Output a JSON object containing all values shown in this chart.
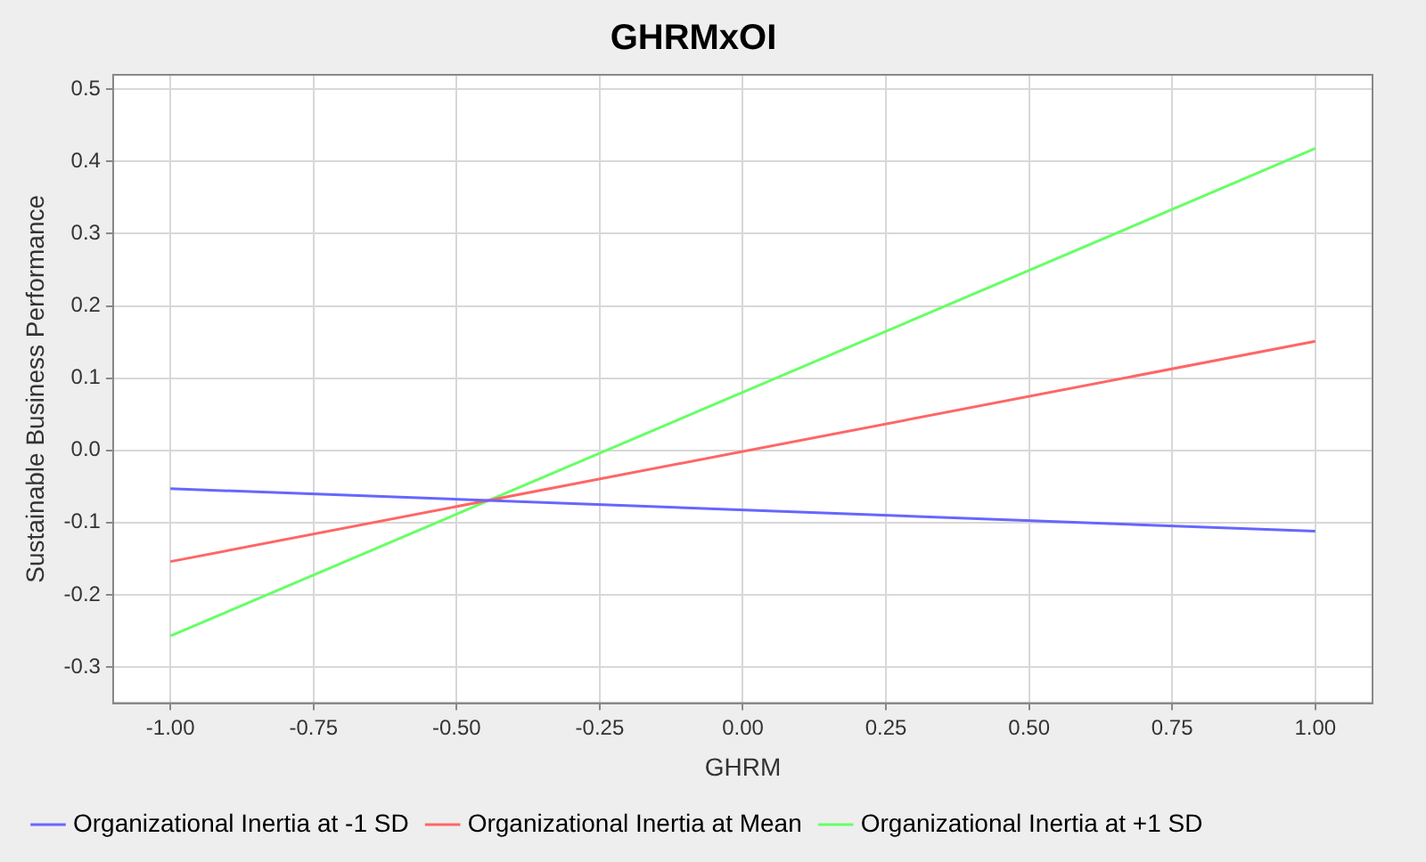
{
  "chart_data": {
    "type": "line",
    "title": "GHRMxOI",
    "xlabel": "GHRM",
    "ylabel": "Sustainable Business Performance",
    "x": [
      -1,
      1
    ],
    "series": [
      {
        "name": "Organizational Inertia at -1 SD",
        "color": "#6666ff",
        "values": [
          -0.053,
          -0.112
        ]
      },
      {
        "name": "Organizational Inertia at Mean",
        "color": "#ff6666",
        "values": [
          -0.154,
          0.151
        ]
      },
      {
        "name": "Organizational Inertia at +1 SD",
        "color": "#66ff66",
        "values": [
          -0.257,
          0.418
        ]
      }
    ],
    "xlim": [
      -1.1,
      1.1
    ],
    "xticks": [
      {
        "value": -1,
        "label": "-1.00"
      },
      {
        "value": -0.75,
        "label": "-0.75"
      },
      {
        "value": -0.5,
        "label": "-0.50"
      },
      {
        "value": -0.25,
        "label": "-0.25"
      },
      {
        "value": 0,
        "label": "0.00"
      },
      {
        "value": 0.25,
        "label": "0.25"
      },
      {
        "value": 0.5,
        "label": "0.50"
      },
      {
        "value": 0.75,
        "label": "0.75"
      },
      {
        "value": 1,
        "label": "1.00"
      }
    ],
    "ylim": [
      -0.35,
      0.52
    ],
    "yticks": [
      {
        "value": -0.3,
        "label": "-0.3"
      },
      {
        "value": -0.2,
        "label": "-0.2"
      },
      {
        "value": -0.1,
        "label": "-0.1"
      },
      {
        "value": 0,
        "label": "0.0"
      },
      {
        "value": 0.1,
        "label": "0.1"
      },
      {
        "value": 0.2,
        "label": "0.2"
      },
      {
        "value": 0.3,
        "label": "0.3"
      },
      {
        "value": 0.4,
        "label": "0.4"
      },
      {
        "value": 0.5,
        "label": "0.5"
      }
    ],
    "grid": true,
    "legend": "bottom",
    "marker": "none",
    "line_style": "solid"
  }
}
